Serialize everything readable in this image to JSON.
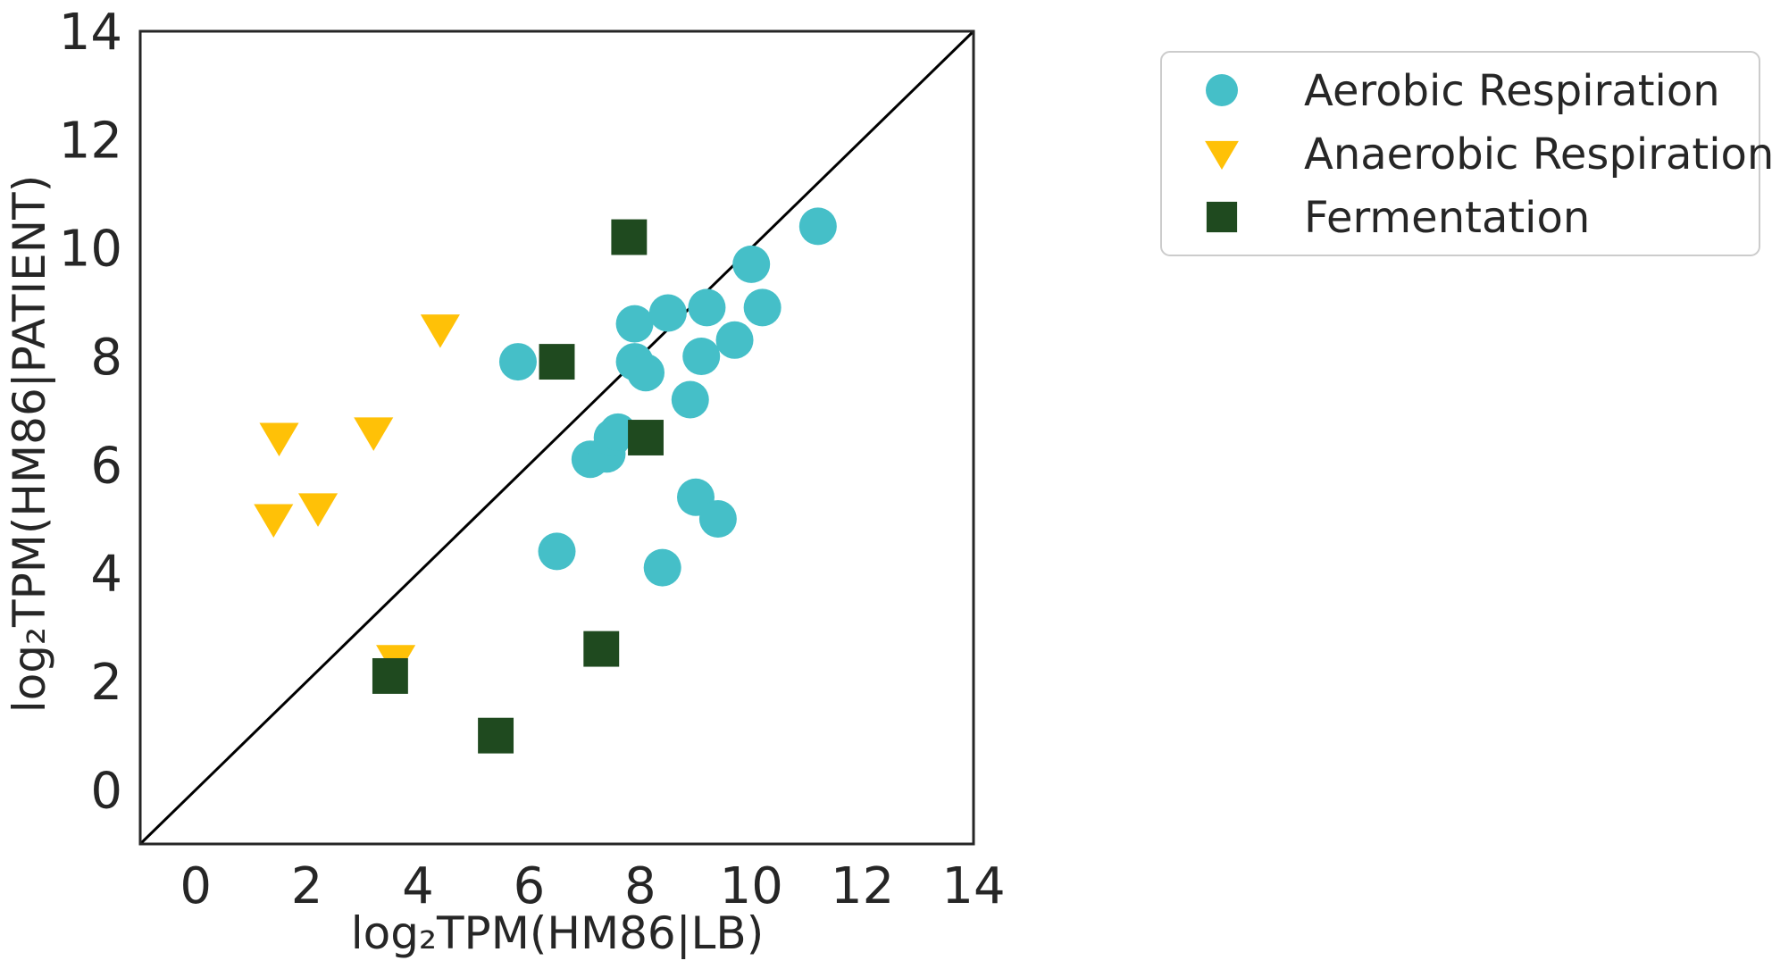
{
  "chart_data": {
    "type": "scatter",
    "xlabel": "log₂TPM(HM86|LB)",
    "ylabel": "log₂TPM(HM86|PATIENT)",
    "xlim": [
      -1,
      14
    ],
    "ylim": [
      -1,
      14
    ],
    "xticks": [
      "0",
      "2",
      "4",
      "6",
      "8",
      "10",
      "12",
      "14"
    ],
    "yticks": [
      "0",
      "2",
      "4",
      "6",
      "8",
      "10",
      "12",
      "14"
    ],
    "grid": false,
    "legend_position": "outside top-right",
    "reference_line": "y = x",
    "series": [
      {
        "name": "Aerobic Respiration",
        "marker": "circle",
        "color": "#45bfc8",
        "points": [
          [
            5.8,
            7.9
          ],
          [
            6.5,
            4.4
          ],
          [
            7.1,
            6.1
          ],
          [
            7.4,
            6.2
          ],
          [
            7.5,
            6.5
          ],
          [
            7.6,
            6.6
          ],
          [
            7.9,
            8.6
          ],
          [
            7.9,
            7.9
          ],
          [
            8.1,
            7.7
          ],
          [
            8.4,
            4.1
          ],
          [
            8.5,
            8.8
          ],
          [
            8.9,
            7.2
          ],
          [
            9.0,
            5.4
          ],
          [
            9.1,
            8.0
          ],
          [
            9.2,
            8.9
          ],
          [
            9.4,
            5.0
          ],
          [
            9.7,
            8.3
          ],
          [
            10.0,
            9.7
          ],
          [
            10.2,
            8.9
          ],
          [
            11.2,
            10.4
          ]
        ]
      },
      {
        "name": "Anaerobic Respiration",
        "marker": "triangle-down",
        "color": "#ffc107",
        "points": [
          [
            1.4,
            5.0
          ],
          [
            1.5,
            6.5
          ],
          [
            2.2,
            5.2
          ],
          [
            3.2,
            6.6
          ],
          [
            3.6,
            2.4
          ],
          [
            4.4,
            8.5
          ]
        ]
      },
      {
        "name": "Fermentation",
        "marker": "square",
        "color": "#1f4a1f",
        "points": [
          [
            3.5,
            2.1
          ],
          [
            5.4,
            1.0
          ],
          [
            6.5,
            7.9
          ],
          [
            7.3,
            2.6
          ],
          [
            7.8,
            10.2
          ],
          [
            8.1,
            6.5
          ]
        ]
      }
    ]
  }
}
